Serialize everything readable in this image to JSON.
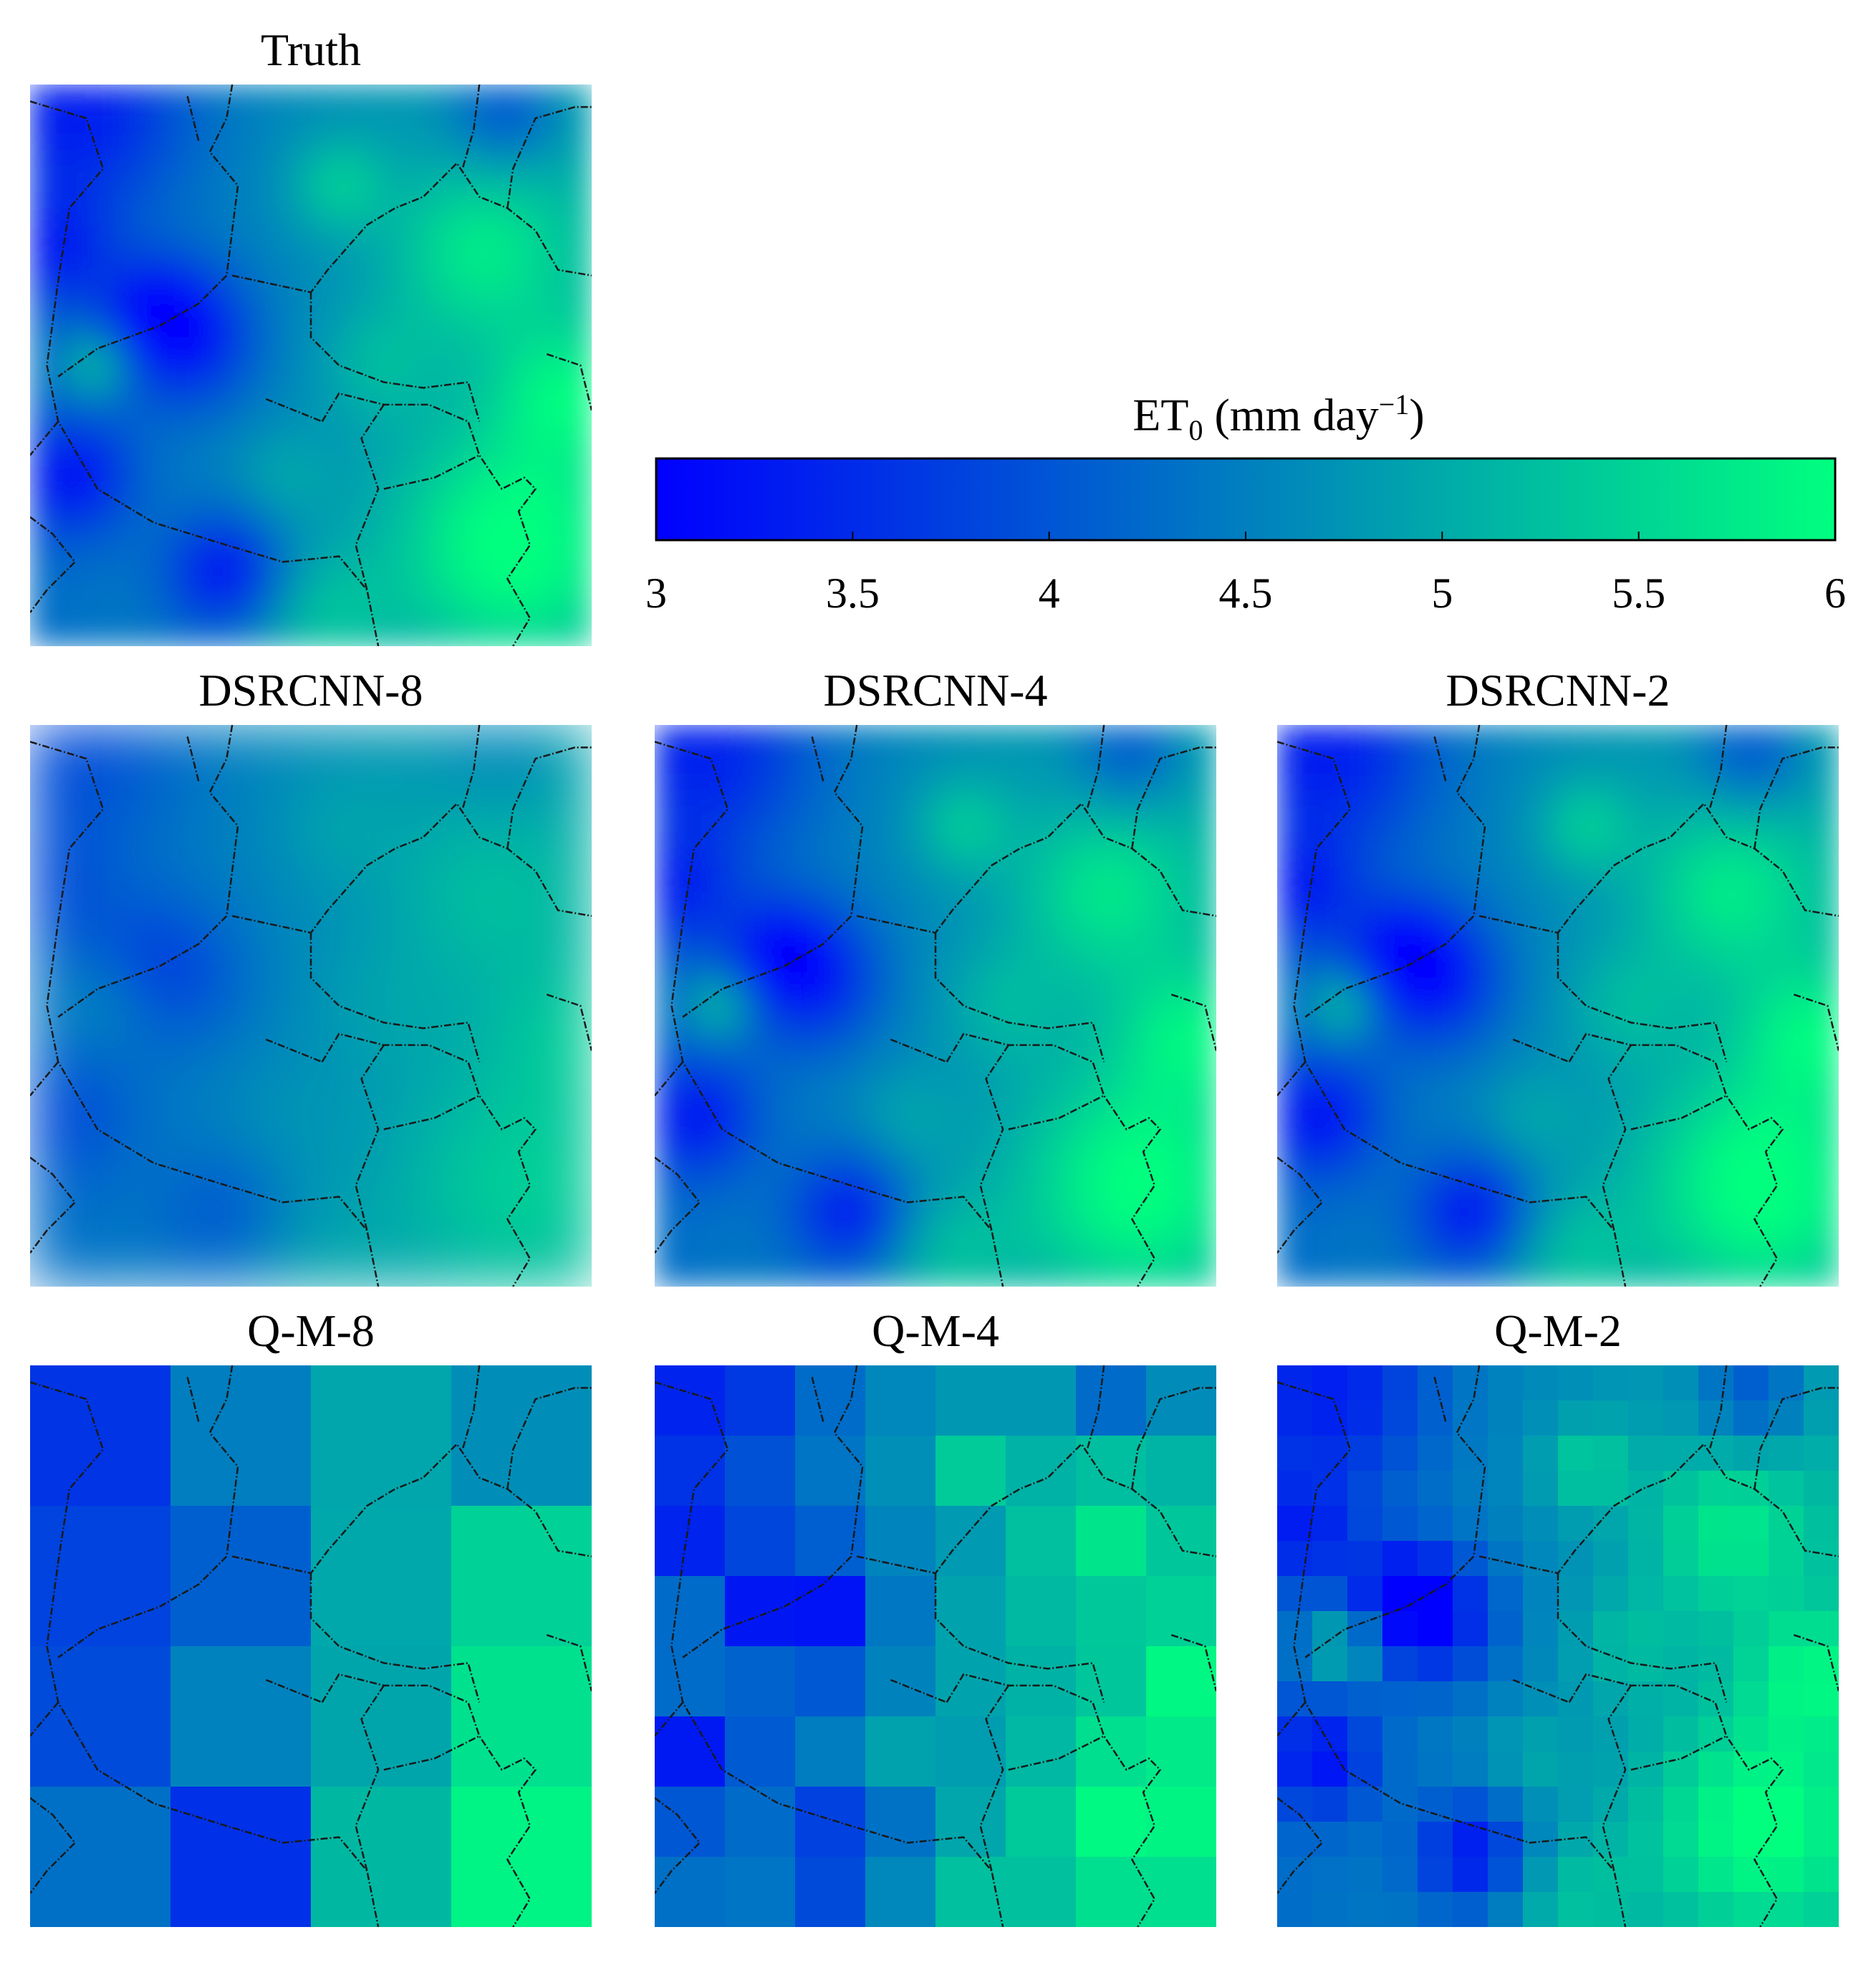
{
  "panels": [
    {
      "id": "truth",
      "title": "Truth",
      "style": "smooth",
      "strength": 1.0,
      "block": 0
    },
    {
      "id": "dsrcnn8",
      "title": "DSRCNN-8",
      "style": "smooth",
      "strength": 0.45,
      "block": 0
    },
    {
      "id": "dsrcnn4",
      "title": "DSRCNN-4",
      "style": "smooth",
      "strength": 0.95,
      "block": 0
    },
    {
      "id": "dsrcnn2",
      "title": "DSRCNN-2",
      "style": "smooth",
      "strength": 1.0,
      "block": 0
    },
    {
      "id": "qm8",
      "title": "Q-M-8",
      "style": "blocky",
      "strength": 0.85,
      "block": 8
    },
    {
      "id": "qm4",
      "title": "Q-M-4",
      "style": "blocky",
      "strength": 0.9,
      "block": 4
    },
    {
      "id": "qm2",
      "title": "Q-M-2",
      "style": "blocky",
      "strength": 0.95,
      "block": 2
    }
  ],
  "colorbar": {
    "title_main": "ET",
    "title_sub": "0",
    "title_rest": " (mm day",
    "title_sup": "−1",
    "title_end": ")",
    "min": 3,
    "max": 6,
    "ticks": [
      "3",
      "3.5",
      "4",
      "4.5",
      "5",
      "5.5",
      "6"
    ],
    "color_low": "#0000ff",
    "color_high": "#00ff7f"
  }
}
